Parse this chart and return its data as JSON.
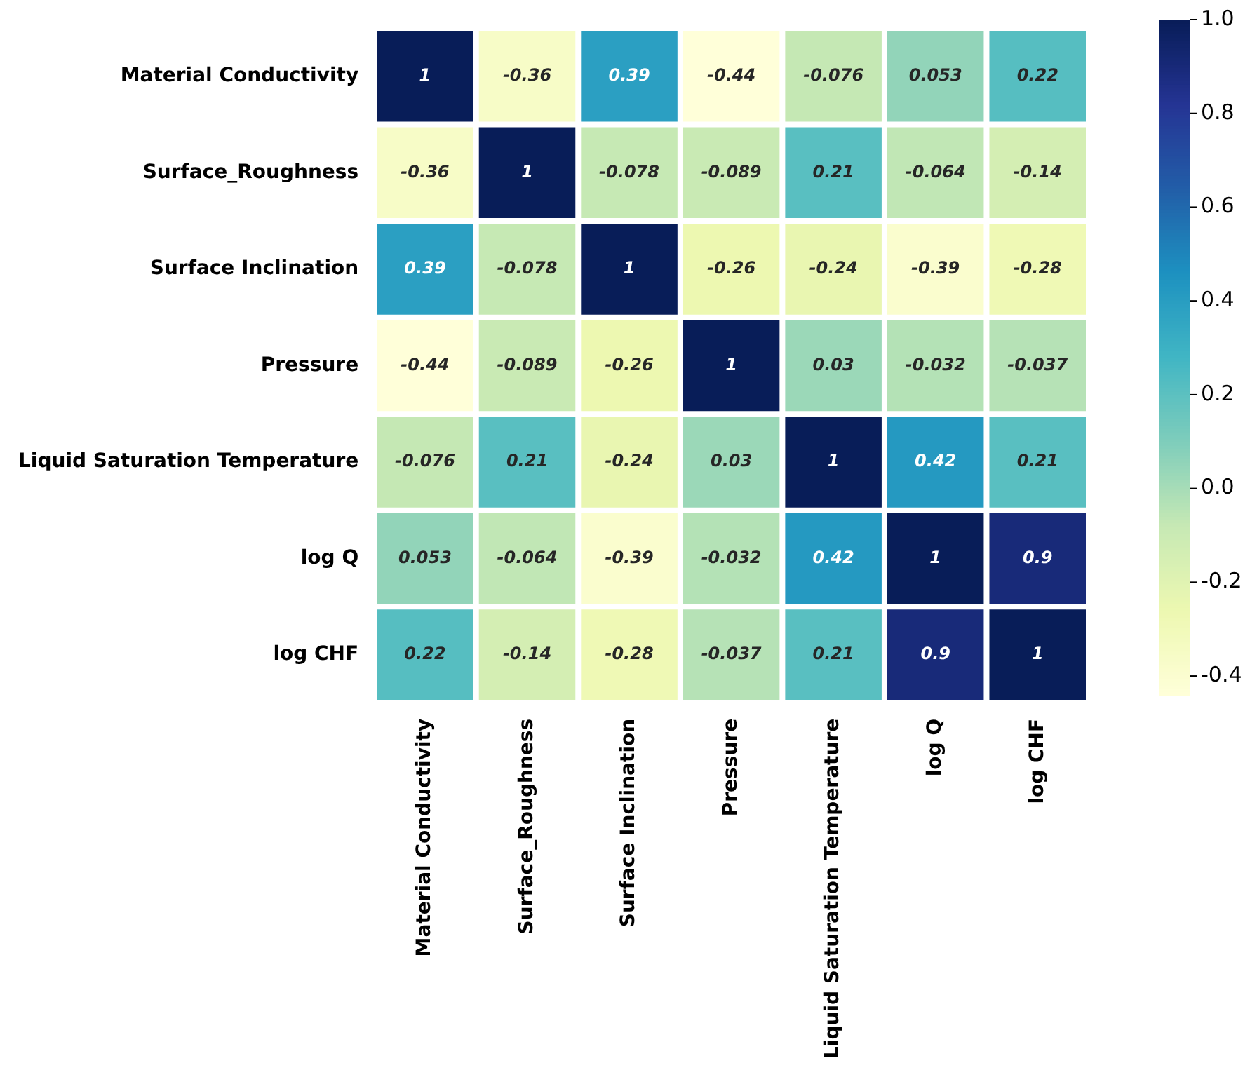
{
  "chart_data": {
    "type": "heatmap",
    "categories": [
      "Material Conductivity",
      "Surface_Roughness",
      "Surface Inclination",
      "Pressure",
      "Liquid Saturation Temperature",
      "log Q",
      "log CHF"
    ],
    "y_categories": [
      "Material Conductivity",
      "Surface_Roughness",
      "Surface Inclination",
      "Pressure",
      "Liquid Saturation Temperature",
      "log Q",
      "log CHF"
    ],
    "cells": [
      [
        1,
        -0.36,
        0.39,
        -0.44,
        -0.076,
        0.053,
        0.22
      ],
      [
        -0.36,
        1,
        -0.078,
        -0.089,
        0.21,
        -0.064,
        -0.14
      ],
      [
        0.39,
        -0.078,
        1,
        -0.26,
        -0.24,
        -0.39,
        -0.28
      ],
      [
        -0.44,
        -0.089,
        -0.26,
        1,
        0.03,
        -0.032,
        -0.037
      ],
      [
        -0.076,
        0.21,
        -0.24,
        0.03,
        1,
        0.42,
        0.21
      ],
      [
        0.053,
        -0.064,
        -0.39,
        -0.032,
        0.42,
        1,
        0.9
      ],
      [
        0.22,
        -0.14,
        -0.28,
        -0.037,
        0.21,
        0.9,
        1
      ]
    ],
    "clim": [
      -0.44,
      1.0
    ],
    "cticks": [
      -0.4,
      -0.2,
      {
        "value": 0,
        "label": "0.0"
      },
      0.2,
      0.4,
      0.6,
      0.8,
      {
        "value": 1,
        "label": "1.0"
      }
    ],
    "data_labels": true
  }
}
